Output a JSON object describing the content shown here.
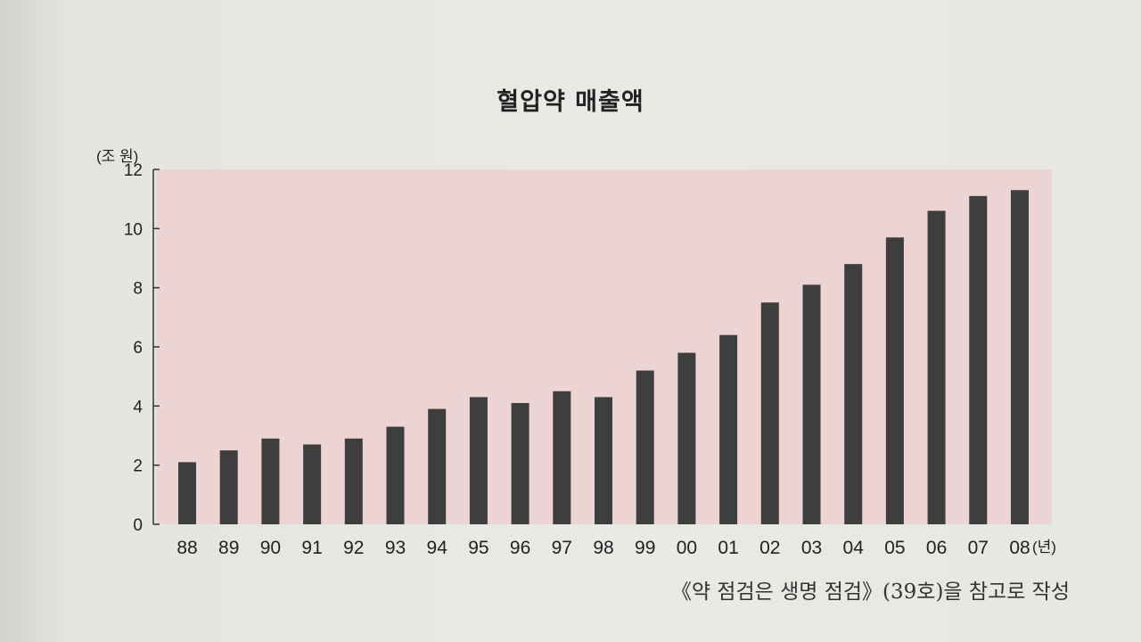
{
  "chart_data": {
    "type": "bar",
    "title": "혈압약 매출액",
    "ylabel": "(조 원)",
    "xlabel_suffix": "(년)",
    "categories": [
      "88",
      "89",
      "90",
      "91",
      "92",
      "93",
      "94",
      "95",
      "96",
      "97",
      "98",
      "99",
      "00",
      "01",
      "02",
      "03",
      "04",
      "05",
      "06",
      "07",
      "08"
    ],
    "values": [
      2.1,
      2.5,
      2.9,
      2.7,
      2.9,
      3.3,
      3.9,
      4.3,
      4.1,
      4.5,
      4.3,
      5.2,
      5.8,
      6.4,
      7.5,
      8.1,
      8.8,
      9.7,
      10.6,
      11.1,
      11.3
    ],
    "ylim": [
      0,
      12
    ],
    "yticks": [
      "0",
      "2",
      "4",
      "6",
      "8",
      "10",
      "12"
    ],
    "grid": false,
    "colors": {
      "bar": "#3e3e3e",
      "plot_background": "#ecd4d4"
    }
  },
  "source_note": "《약 점검은 생명 점검》(39호)을 참고로 작성"
}
